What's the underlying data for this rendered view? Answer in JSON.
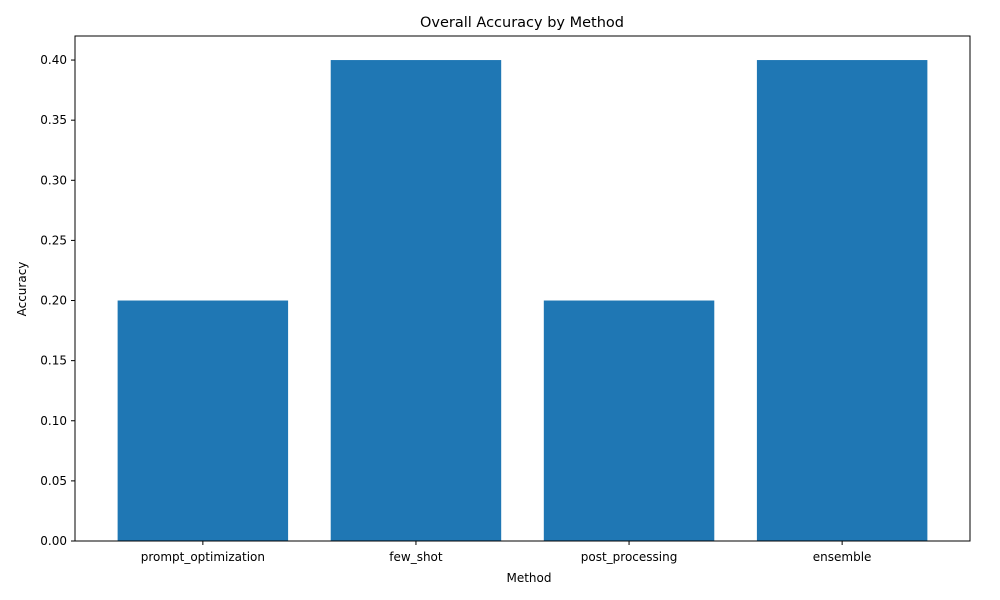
{
  "chart_data": {
    "type": "bar",
    "title": "Overall Accuracy by Method",
    "xlabel": "Method",
    "ylabel": "Accuracy",
    "categories": [
      "prompt_optimization",
      "few_shot",
      "post_processing",
      "ensemble"
    ],
    "values": [
      0.2,
      0.4,
      0.2,
      0.4
    ],
    "ylim": [
      0,
      0.42
    ],
    "yticks": [
      0.0,
      0.05,
      0.1,
      0.15,
      0.2,
      0.25,
      0.3,
      0.35,
      0.4
    ],
    "ytick_labels": [
      "0.00",
      "0.05",
      "0.10",
      "0.15",
      "0.20",
      "0.25",
      "0.30",
      "0.35",
      "0.40"
    ],
    "bar_color": "#1f77b4",
    "grid": false,
    "legend": "none"
  }
}
